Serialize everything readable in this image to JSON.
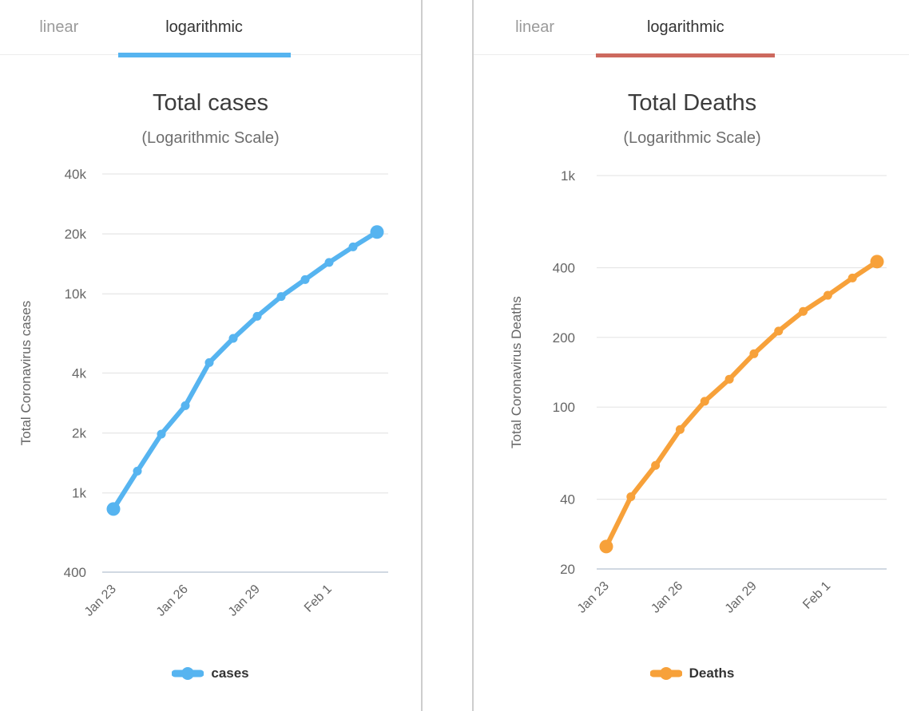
{
  "panels": [
    {
      "tabs": [
        {
          "label": "linear",
          "active": false
        },
        {
          "label": "logarithmic",
          "active": true
        }
      ],
      "accent": "#56b4f0"
    },
    {
      "tabs": [
        {
          "label": "linear",
          "active": false
        },
        {
          "label": "logarithmic",
          "active": true
        }
      ],
      "accent": "#cd695e"
    }
  ],
  "chart_data": [
    {
      "type": "line",
      "scale": "logarithmic",
      "title": "Total cases",
      "subtitle": "(Logarithmic Scale)",
      "ylabel": "Total Coronavirus cases",
      "x": [
        "Jan 23",
        "Jan 24",
        "Jan 25",
        "Jan 26",
        "Jan 27",
        "Jan 28",
        "Jan 29",
        "Jan 30",
        "Jan 31",
        "Feb 1",
        "Feb 2",
        "Feb 3"
      ],
      "x_tick_labels": [
        "Jan 23",
        "Jan 26",
        "Jan 29",
        "Feb 1"
      ],
      "y_ticks": [
        {
          "label": "40k",
          "value": 40000
        },
        {
          "label": "20k",
          "value": 20000
        },
        {
          "label": "10k",
          "value": 10000
        },
        {
          "label": "4k",
          "value": 4000
        },
        {
          "label": "2k",
          "value": 2000
        },
        {
          "label": "1k",
          "value": 1000
        },
        {
          "label": "400",
          "value": 400
        }
      ],
      "y_range": [
        400,
        40000
      ],
      "grid": "horizontal",
      "legend_position": "bottom",
      "series": [
        {
          "name": "cases",
          "color": "#56b4f0",
          "values": [
            830,
            1287,
            1975,
            2744,
            4515,
            5974,
            7711,
            9692,
            11791,
            14380,
            17205,
            20440
          ]
        }
      ]
    },
    {
      "type": "line",
      "scale": "logarithmic",
      "title": "Total Deaths",
      "subtitle": "(Logarithmic Scale)",
      "ylabel": "Total Coronavirus Deaths",
      "x": [
        "Jan 23",
        "Jan 24",
        "Jan 25",
        "Jan 26",
        "Jan 27",
        "Jan 28",
        "Jan 29",
        "Jan 30",
        "Jan 31",
        "Feb 1",
        "Feb 2",
        "Feb 3"
      ],
      "x_tick_labels": [
        "Jan 23",
        "Jan 26",
        "Jan 29",
        "Feb 1"
      ],
      "y_ticks": [
        {
          "label": "1k",
          "value": 1000
        },
        {
          "label": "400",
          "value": 400
        },
        {
          "label": "200",
          "value": 200
        },
        {
          "label": "100",
          "value": 100
        },
        {
          "label": "40",
          "value": 40
        },
        {
          "label": "20",
          "value": 20
        }
      ],
      "y_range": [
        20,
        1000
      ],
      "grid": "horizontal",
      "legend_position": "bottom",
      "series": [
        {
          "name": "Deaths",
          "color": "#f7a13a",
          "values": [
            25,
            41,
            56,
            80,
            106,
            132,
            170,
            213,
            259,
            304,
            361,
            425
          ]
        }
      ]
    }
  ]
}
